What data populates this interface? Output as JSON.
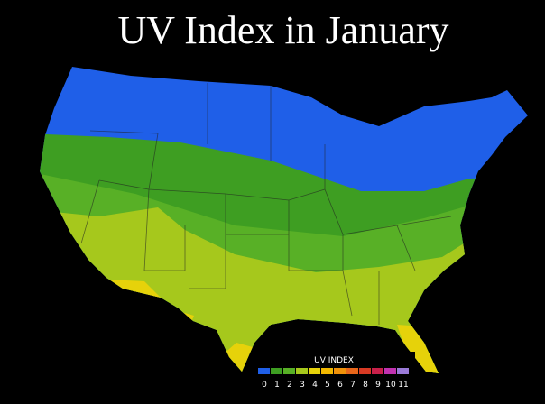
{
  "title": "UV Index in January",
  "legend": {
    "title": "UV INDEX",
    "items": [
      {
        "label": "0",
        "color": "#1f5fe8"
      },
      {
        "label": "1",
        "color": "#3e9e22"
      },
      {
        "label": "2",
        "color": "#58b026"
      },
      {
        "label": "3",
        "color": "#a6c81c"
      },
      {
        "label": "4",
        "color": "#e6d20a"
      },
      {
        "label": "5",
        "color": "#f2b800"
      },
      {
        "label": "6",
        "color": "#f0920a"
      },
      {
        "label": "7",
        "color": "#e8661a"
      },
      {
        "label": "8",
        "color": "#d83a24"
      },
      {
        "label": "9",
        "color": "#c8204a"
      },
      {
        "label": "10",
        "color": "#c032b0"
      },
      {
        "label": "11",
        "color": "#9a7ad8"
      }
    ]
  }
}
